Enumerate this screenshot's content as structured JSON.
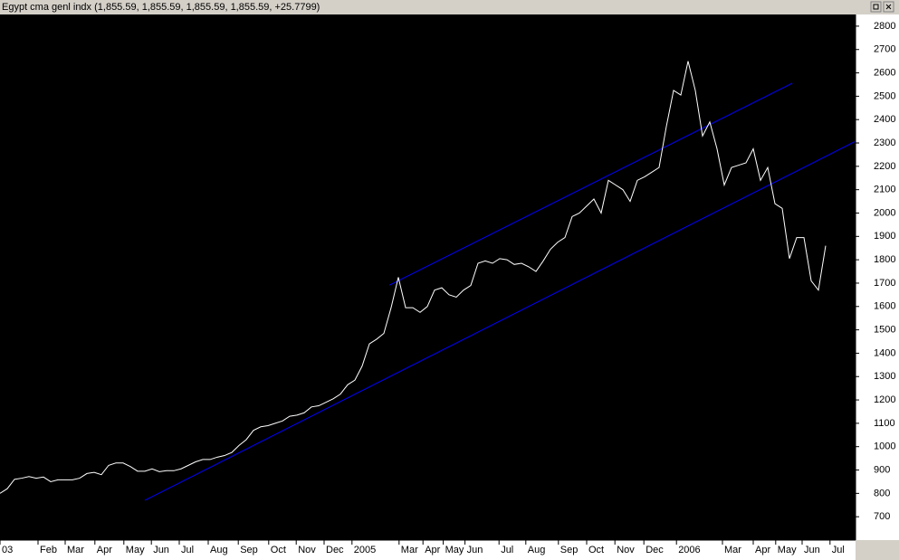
{
  "chart_data": {
    "type": "line",
    "title": "Egypt cma genl indx (1,855.59, 1,855.59, 1,855.59, 1,855.59, +25.7799)",
    "series": [
      {
        "name": "Egypt cma genl indx",
        "color": "#ffffff",
        "values": [
          800,
          820,
          860,
          865,
          872,
          865,
          870,
          850,
          858,
          858,
          858,
          865,
          885,
          890,
          880,
          920,
          930,
          930,
          915,
          895,
          895,
          905,
          893,
          897,
          897,
          905,
          920,
          935,
          945,
          945,
          955,
          962,
          975,
          1005,
          1030,
          1070,
          1085,
          1090,
          1100,
          1110,
          1130,
          1135,
          1145,
          1170,
          1175,
          1190,
          1205,
          1225,
          1265,
          1285,
          1345,
          1440,
          1460,
          1485,
          1595,
          1725,
          1595,
          1595,
          1575,
          1600,
          1670,
          1680,
          1650,
          1640,
          1670,
          1690,
          1785,
          1795,
          1785,
          1805,
          1800,
          1780,
          1785,
          1770,
          1750,
          1795,
          1845,
          1875,
          1895,
          1985,
          2000,
          2030,
          2060,
          2000,
          2140,
          2120,
          2100,
          2050,
          2140,
          2155,
          2175,
          2195,
          2370,
          2525,
          2505,
          2650,
          2525,
          2330,
          2390,
          2275,
          2120,
          2195,
          2205,
          2215,
          2275,
          2140,
          2195,
          2040,
          2020,
          1805,
          1895,
          1895,
          1710,
          1670,
          1860
        ]
      }
    ],
    "trendlines": [
      {
        "color": "#0000ff",
        "x": [
          20,
          118
        ],
        "values": [
          770,
          2305
        ]
      },
      {
        "color": "#0000ff",
        "x": [
          53.75,
          109.4
        ],
        "values": [
          1691,
          2556
        ]
      }
    ],
    "xlim": [
      0,
      118.125
    ],
    "xticks": [
      {
        "value": 0,
        "label": "03"
      },
      {
        "value": 5.25,
        "label": "Feb"
      },
      {
        "value": 9,
        "label": "Mar"
      },
      {
        "value": 13.1,
        "label": "Apr"
      },
      {
        "value": 17.1,
        "label": "May"
      },
      {
        "value": 20.9,
        "label": "Jun"
      },
      {
        "value": 24.75,
        "label": "Jul"
      },
      {
        "value": 28.75,
        "label": "Aug"
      },
      {
        "value": 32.9,
        "label": "Sep"
      },
      {
        "value": 37.1,
        "label": "Oct"
      },
      {
        "value": 40.9,
        "label": "Nov"
      },
      {
        "value": 44.75,
        "label": "Dec"
      },
      {
        "value": 48.6,
        "label": "2005"
      },
      {
        "value": 55.1,
        "label": "Mar"
      },
      {
        "value": 58.4,
        "label": "Apr"
      },
      {
        "value": 61.2,
        "label": "May"
      },
      {
        "value": 64.2,
        "label": "Jun"
      },
      {
        "value": 68.9,
        "label": "Jul"
      },
      {
        "value": 72.6,
        "label": "Aug"
      },
      {
        "value": 77.1,
        "label": "Sep"
      },
      {
        "value": 81,
        "label": "Oct"
      },
      {
        "value": 84.9,
        "label": "Nov"
      },
      {
        "value": 88.9,
        "label": "Dec"
      },
      {
        "value": 93.4,
        "label": "2006"
      },
      {
        "value": 99.75,
        "label": "Mar"
      },
      {
        "value": 104,
        "label": "Apr"
      },
      {
        "value": 107.1,
        "label": "May"
      },
      {
        "value": 110.75,
        "label": "Jun"
      },
      {
        "value": 114.6,
        "label": "Jul"
      }
    ],
    "ylim": [
      600,
      2850
    ],
    "yticks": [
      700,
      800,
      900,
      1000,
      1100,
      1200,
      1300,
      1400,
      1500,
      1600,
      1700,
      1800,
      1900,
      2000,
      2100,
      2200,
      2300,
      2400,
      2500,
      2600,
      2700,
      2800
    ],
    "background": "#000000"
  }
}
